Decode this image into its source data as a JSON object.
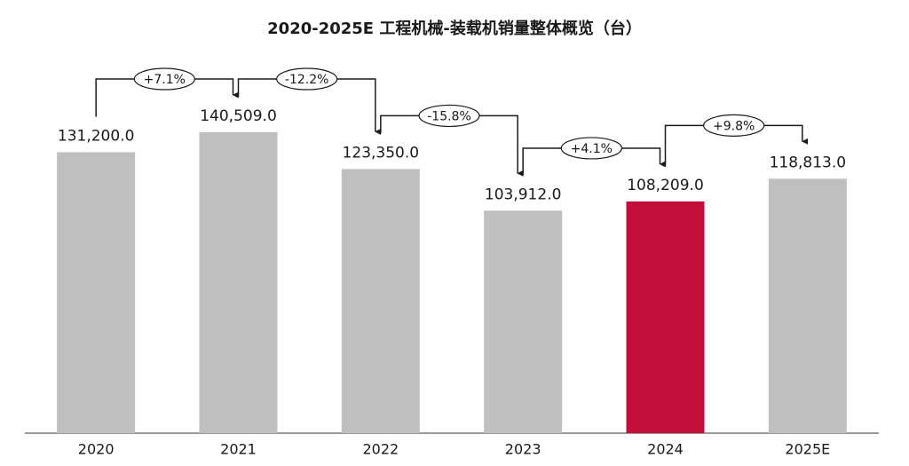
{
  "chart_data": {
    "type": "bar",
    "title": "2020-2025E 工程机械-装载机销量整体概览（台）",
    "categories": [
      "2020",
      "2021",
      "2022",
      "2023",
      "2024",
      "2025E"
    ],
    "values": [
      131200,
      140509,
      123350,
      103912,
      108209,
      118813
    ],
    "value_labels": [
      "131,200.0",
      "140,509.0",
      "123,350.0",
      "103,912.0",
      "108,209.0",
      "118,813.0"
    ],
    "colors": [
      "#bfbfbf",
      "#bfbfbf",
      "#bfbfbf",
      "#bfbfbf",
      "#c20e3a",
      "#bfbfbf"
    ],
    "growth_labels": [
      "+7.1%",
      "-12.2%",
      "-15.8%",
      "+4.1%",
      "+9.8%"
    ],
    "ylim": [
      0,
      160000
    ]
  }
}
